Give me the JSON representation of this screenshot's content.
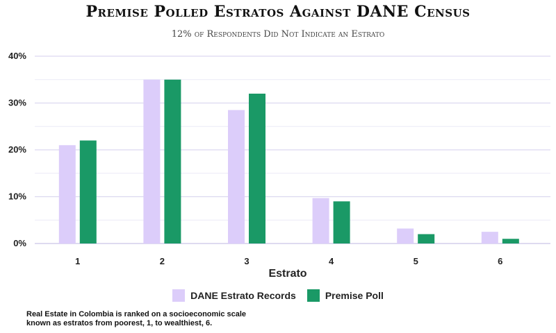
{
  "chart_data": {
    "type": "bar",
    "title": "Premise Polled Estratos Against DANE Census",
    "subtitle": "12% of Respondents Did Not Indicate an Estrato",
    "xlabel": "Estrato",
    "ylabel": "",
    "categories": [
      "1",
      "2",
      "3",
      "4",
      "5",
      "6"
    ],
    "series": [
      {
        "name": "DANE Estrato Records",
        "color": "#dccdfa",
        "values": [
          21,
          35,
          28.5,
          9.7,
          3.2,
          2.5
        ]
      },
      {
        "name": "Premise Poll",
        "color": "#1a9966",
        "values": [
          22,
          35,
          32,
          9,
          2,
          1
        ]
      }
    ],
    "ylim": [
      0,
      40
    ],
    "yticks": [
      0,
      10,
      20,
      30,
      40
    ],
    "ytick_format": "percent",
    "grid": true,
    "legend_position": "bottom"
  },
  "footnote": "Real Estate in Colombia is ranked on a socioeconomic scale\n known as estratos from poorest, 1, to wealthiest, 6."
}
